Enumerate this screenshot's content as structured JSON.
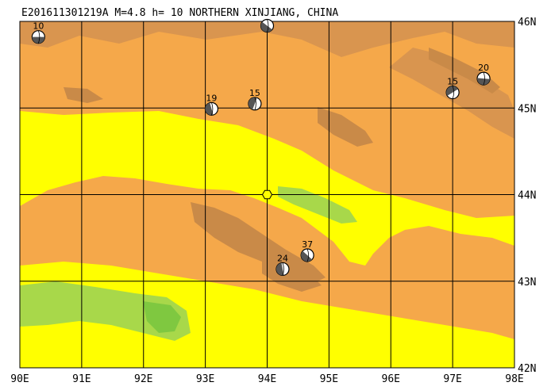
{
  "map": {
    "title": "E201611301219A M=4.8 h= 10 NORTHERN XINJIANG, CHINA",
    "lon_range": [
      90,
      98
    ],
    "lat_range": [
      42,
      46
    ],
    "lon_ticks": [
      90,
      91,
      92,
      93,
      94,
      95,
      96,
      97,
      98
    ],
    "lat_ticks": [
      42,
      43,
      44,
      45,
      46
    ],
    "lon_labels": [
      "90E",
      "91E",
      "92E",
      "93E",
      "94E",
      "95E",
      "96E",
      "97E",
      "98E"
    ],
    "lat_labels": [
      "42N",
      "43N",
      "44N",
      "45N",
      "46N"
    ],
    "colors": {
      "lowland": "#ffff00",
      "midland": "#f5a84a",
      "highland": "#c98a48",
      "basin": "#a8d84a",
      "grid": "#000000"
    },
    "epicenter": {
      "lon": 94.0,
      "lat": 44.0
    },
    "events": [
      {
        "label": "10",
        "lon": 90.3,
        "lat": 45.82
      },
      {
        "label": "",
        "lon": 94.0,
        "lat": 45.95
      },
      {
        "label": "19",
        "lon": 93.1,
        "lat": 44.99
      },
      {
        "label": "15",
        "lon": 93.8,
        "lat": 45.05
      },
      {
        "label": "15",
        "lon": 97.0,
        "lat": 45.18
      },
      {
        "label": "20",
        "lon": 97.5,
        "lat": 45.34
      },
      {
        "label": "37",
        "lon": 94.65,
        "lat": 43.3
      },
      {
        "label": "24",
        "lon": 94.25,
        "lat": 43.14
      }
    ]
  }
}
